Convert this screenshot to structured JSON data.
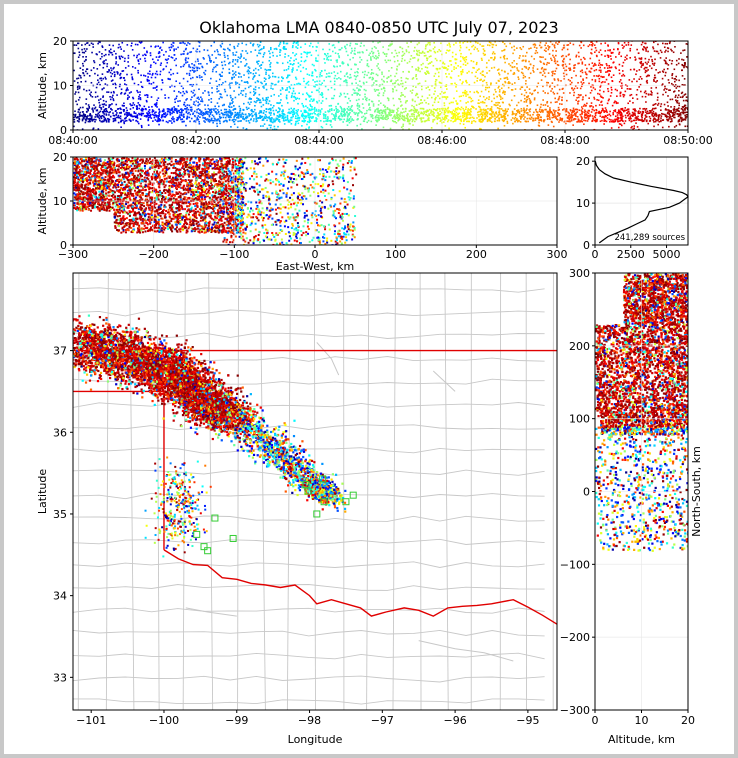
{
  "title": "Oklahoma LMA 0840-0850 UTC July 07, 2023",
  "colors": {
    "state_border": "#e00000",
    "county": "#c8c8c8",
    "grid": "#e6e6e6",
    "station": "#33cc33",
    "profile": "#000000"
  },
  "chart_data": [
    {
      "id": "time_height",
      "type": "scatter",
      "ylabel": "Altitude, km",
      "ylim": [
        0,
        20
      ],
      "yticks": [
        "0",
        "10",
        "20"
      ],
      "xticks": [
        "08:40:00",
        "08:42:00",
        "08:44:00",
        "08:46:00",
        "08:48:00",
        "08:50:00"
      ],
      "xlim": [
        "08:40:00",
        "08:50:00"
      ],
      "colormap": "jet (time)",
      "grid": true
    },
    {
      "id": "ew_altitude",
      "type": "scatter",
      "xlabel": "East-West, km",
      "ylabel": "Altitude, km",
      "xlim": [
        -300,
        300
      ],
      "ylim": [
        0,
        20
      ],
      "xticks": [
        "−300",
        "−200",
        "−100",
        "0",
        "100",
        "200",
        "300"
      ],
      "yticks": [
        "0",
        "10",
        "20"
      ],
      "grid": true,
      "source_extent_x": [
        -300,
        50
      ],
      "dense_core_x": [
        -300,
        -90
      ],
      "altitude_range": [
        2,
        20
      ]
    },
    {
      "id": "altitude_histogram",
      "type": "line",
      "xlim": [
        0,
        6500
      ],
      "ylim": [
        0,
        21
      ],
      "xticks": [
        "0",
        "2500",
        "5000"
      ],
      "yticks": [
        "0",
        "10",
        "20"
      ],
      "annotation": "241,289 sources",
      "altitude": [
        0.5,
        2,
        3,
        4,
        5,
        6,
        7,
        8,
        8.5,
        9,
        10,
        11,
        11.5,
        12,
        12.5,
        13,
        14,
        15,
        16,
        17,
        18,
        19,
        20
      ],
      "counts": [
        300,
        900,
        1600,
        2300,
        2900,
        3500,
        3700,
        3800,
        4500,
        5200,
        5900,
        6300,
        6500,
        6400,
        6100,
        5500,
        3900,
        2500,
        1300,
        700,
        300,
        100,
        20
      ]
    },
    {
      "id": "plan_view",
      "type": "scatter",
      "xlabel": "Longitude",
      "ylabel": "Latitude",
      "xlim": [
        -101.25,
        -94.6
      ],
      "ylim": [
        32.6,
        37.95
      ],
      "xticks": [
        "−101",
        "−100",
        "−99",
        "−98",
        "−97",
        "−96",
        "−95"
      ],
      "yticks": [
        "33",
        "34",
        "35",
        "36",
        "37"
      ],
      "storm_axis": [
        [
          -101.2,
          37.1
        ],
        [
          -100.0,
          36.8
        ],
        [
          -99.3,
          36.3
        ],
        [
          -98.6,
          35.9
        ],
        [
          -98.0,
          35.4
        ],
        [
          -97.7,
          35.2
        ]
      ],
      "stations": [
        [
          -97.82,
          35.43
        ],
        [
          -98.02,
          35.28
        ],
        [
          -97.9,
          35.0
        ],
        [
          -97.5,
          35.15
        ],
        [
          -97.4,
          35.23
        ],
        [
          -97.8,
          35.15
        ],
        [
          -99.55,
          34.75
        ],
        [
          -99.4,
          34.55
        ],
        [
          -99.45,
          34.6
        ],
        [
          -99.05,
          34.7
        ],
        [
          -99.3,
          34.95
        ],
        [
          -98.05,
          35.36
        ]
      ]
    },
    {
      "id": "ns_altitude",
      "type": "scatter",
      "xlabel": "Altitude, km",
      "ylabel": "North-South, km",
      "xlim": [
        0,
        20
      ],
      "ylim": [
        -300,
        300
      ],
      "xticks": [
        "0",
        "10",
        "20"
      ],
      "yticks": [
        "−300",
        "−200",
        "−100",
        "0",
        "100",
        "200",
        "300"
      ],
      "source_extent_y": [
        -80,
        300
      ],
      "dense_core_y": [
        100,
        230
      ]
    }
  ]
}
